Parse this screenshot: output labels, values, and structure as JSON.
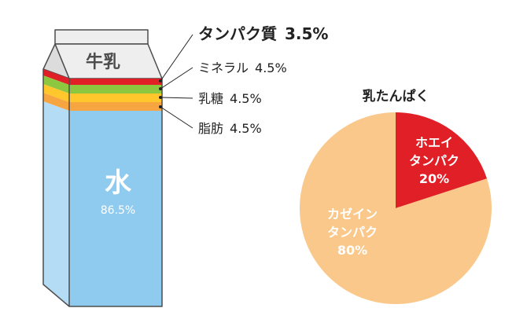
{
  "carton": {
    "top_label": "牛乳",
    "water_label": "水",
    "water_value": "86.5%",
    "layer_colors": {
      "protein": "#e11f26",
      "mineral": "#8dc63f",
      "lactose": "#ffc72c",
      "fat": "#f7a541",
      "water": "#8fcbee",
      "water_side": "#b4ddf5",
      "cap": "#eeeeee",
      "outline": "#4d4d4d"
    }
  },
  "legend": [
    {
      "label": "タンパク質",
      "value": "3.5%",
      "color": "#e11f26",
      "bold": true
    },
    {
      "label": "ミネラル",
      "value": "4.5%",
      "color": "#8dc63f",
      "bold": false
    },
    {
      "label": "乳糖",
      "value": "4.5%",
      "color": "#ffc72c",
      "bold": false
    },
    {
      "label": "脂肪",
      "value": "4.5%",
      "color": "#f7a541",
      "bold": false
    }
  ],
  "chart_data": [
    {
      "type": "bar",
      "title": "",
      "categories": [
        "タンパク質",
        "ミネラル",
        "乳糖",
        "脂肪",
        "水"
      ],
      "values": [
        3.5,
        4.5,
        4.5,
        4.5,
        86.5
      ],
      "unit": "%",
      "stacked": true
    },
    {
      "type": "pie",
      "title": "乳たんぱく",
      "slices": [
        {
          "label_lines": [
            "ホエイ",
            "タンパク"
          ],
          "value": 20,
          "value_label": "20%",
          "color": "#e11f26"
        },
        {
          "label_lines": [
            "カゼイン",
            "タンパク"
          ],
          "value": 80,
          "value_label": "80%",
          "color": "#f9c88a"
        }
      ]
    }
  ]
}
